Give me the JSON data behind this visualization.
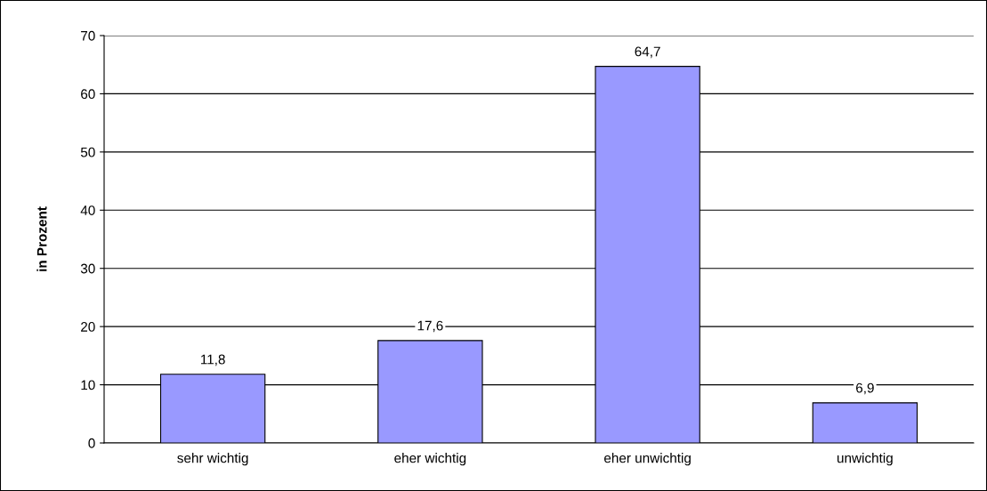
{
  "chart_data": {
    "type": "bar",
    "ylabel": "in Prozent",
    "categories": [
      "sehr wichtig",
      "eher wichtig",
      "eher unwichtig",
      "unwichtig"
    ],
    "values": [
      11.8,
      17.6,
      64.7,
      6.9
    ],
    "value_labels": [
      "11,8",
      "17,6",
      "64,7",
      "6,9"
    ],
    "color": "#9999ff",
    "ylim": [
      0,
      70
    ],
    "yticks": [
      0,
      10,
      20,
      30,
      40,
      50,
      60,
      70
    ],
    "grid": "y",
    "legend": false
  }
}
